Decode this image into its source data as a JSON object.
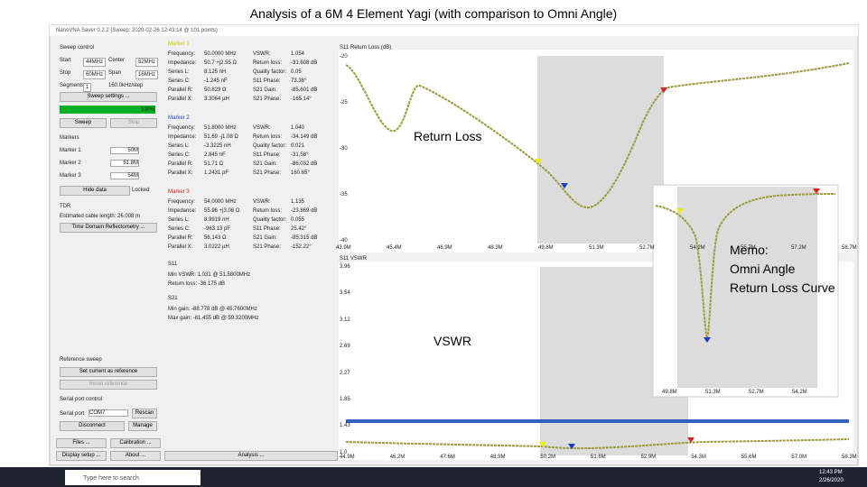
{
  "title": "Analysis of a 6M 4 Element Yagi (with comparison to Omni Angle)",
  "window_title": "NanoVNA Saver 0.2.2 (Sweep: 2020-02-26 12:43:14 @ 101 points)",
  "sweep": {
    "heading": "Sweep control",
    "fields": [
      [
        "Start",
        "44MHz",
        "Center",
        "52MHz"
      ],
      [
        "Stop",
        "60MHz",
        "Span",
        "16MHz"
      ],
      [
        "Segments",
        "1",
        "160.0kHz/step",
        ""
      ]
    ],
    "settings": "Sweep settings ...",
    "progress": "100%",
    "sweep_button": "Sweep",
    "stop_button": "Stop"
  },
  "markers_box": {
    "heading": "Markers",
    "rows": [
      [
        "Marker 1",
        "50M"
      ],
      [
        "Marker 2",
        "51.8M"
      ],
      [
        "Marker 3",
        "54M"
      ]
    ],
    "hide": "Hide data",
    "locked": "Locked"
  },
  "tdr": {
    "heading": "TDR",
    "length": "Estimated cable length: 26.008 m",
    "button": "Time Domain Reflectometry ..."
  },
  "reference": {
    "heading": "Reference sweep",
    "set": "Set current as reference",
    "reset": "Reset reference"
  },
  "serial": {
    "heading": "Serial port control",
    "label": "Serial port",
    "port": "COM7",
    "rescan": "Rescan",
    "disconnect": "Disconnect",
    "manage": "Manage"
  },
  "bottom_buttons": [
    "Files ...",
    "Calibration ...",
    "Display setup ...",
    "About ...",
    "Analysis ..."
  ],
  "markers": [
    {
      "name": "Marker 1",
      "rows": [
        [
          "Frequency:",
          "50.0000 MHz"
        ],
        [
          "Impedance:",
          "50.7 +j2.55 Ω"
        ],
        [
          "Series L:",
          "8.125 nH"
        ],
        [
          "Series C:",
          "-1.245 nF"
        ],
        [
          "Parallel R:",
          "50.829 Ω"
        ],
        [
          "Parallel X:",
          "3.3064 µH"
        ]
      ],
      "rows2": [
        [
          "VSWR:",
          "1.054"
        ],
        [
          "Return loss:",
          "-31.608 dB"
        ],
        [
          "Quality factor:",
          "0.05"
        ],
        [
          "S11 Phase:",
          "73.38°"
        ],
        [
          "S21 Gain:",
          "-85.601 dB"
        ],
        [
          "S21 Phase:",
          "-165.14°"
        ]
      ]
    },
    {
      "name": "Marker 2",
      "rows": [
        [
          "Frequency:",
          "51.8000 MHz"
        ],
        [
          "Impedance:",
          "51.69 -j1.08 Ω"
        ],
        [
          "Series L:",
          "-3.3225 nH"
        ],
        [
          "Series C:",
          "2.845 nF"
        ],
        [
          "Parallel R:",
          "51.71 Ω"
        ],
        [
          "Parallel X:",
          "1.2431 pF"
        ]
      ],
      "rows2": [
        [
          "VSWR:",
          "1.040"
        ],
        [
          "Return loss:",
          "-34.149 dB"
        ],
        [
          "Quality factor:",
          "0.021"
        ],
        [
          "S11 Phase:",
          "-31.58°"
        ],
        [
          "S21 Gain:",
          "-86.032 dB"
        ],
        [
          "S21 Phase:",
          "160.65°"
        ]
      ]
    },
    {
      "name": "Marker 3",
      "rows": [
        [
          "Frequency:",
          "54.0000 MHz"
        ],
        [
          "Impedance:",
          "55.96 +j3.06 Ω"
        ],
        [
          "Series L:",
          "8.9919 nH"
        ],
        [
          "Series C:",
          "-963.13 pF"
        ],
        [
          "Parallel R:",
          "56.143 Ω"
        ],
        [
          "Parallel X:",
          "3.0222 µH"
        ]
      ],
      "rows2": [
        [
          "VSWR:",
          "1.135"
        ],
        [
          "Return loss:",
          "-23.869 dB"
        ],
        [
          "Quality factor:",
          "0.055"
        ],
        [
          "S11 Phase:",
          "25.42°"
        ],
        [
          "S21 Gain:",
          "-85.315 dB"
        ],
        [
          "S21 Phase:",
          "-152.22°"
        ]
      ]
    }
  ],
  "s11": {
    "heading": "S11",
    "lines": [
      "Min VSWR: 1.031 @ 51.5800MHz",
      "Return loss: -36.175 dB"
    ]
  },
  "s21": {
    "heading": "S21",
    "lines": [
      "Min gain: -88.778 dB @ 45.7600MHz",
      "Max gain: -81.455 dB @ 59.3200MHz"
    ]
  },
  "return_loss_chart": {
    "title": "S11 Return Loss (dB)",
    "yticks": [
      "-20",
      "-25",
      "-30",
      "-35",
      "-40"
    ],
    "xticks": [
      "43.9M",
      "45.4M",
      "46.9M",
      "48.3M",
      "49.8M",
      "51.3M",
      "52.7M",
      "54.2M",
      "55.7M",
      "57.2M",
      "58.7M"
    ]
  },
  "vswr_chart": {
    "title": "S11 VSWR",
    "yticks": [
      "3.96",
      "3.54",
      "3.12",
      "2.69",
      "2.27",
      "1.85",
      "1.43",
      "1.0"
    ],
    "xticks": [
      "44.9M",
      "46.2M",
      "47.6M",
      "48.9M",
      "50.2M",
      "51.6M",
      "52.9M",
      "54.3M",
      "55.6M",
      "57.0M",
      "58.3M"
    ]
  },
  "inset": {
    "xticks": [
      "49.8M",
      "51.3M",
      "52.7M",
      "54.2M"
    ]
  },
  "annotations": {
    "return_loss": "Return Loss",
    "vswr": "VSWR",
    "memo": [
      "Memo:",
      "Omni Angle",
      "Return Loss Curve"
    ]
  },
  "taskbar": {
    "search": "Type here to search",
    "time": "12:43 PM",
    "date": "2/26/2020"
  }
}
